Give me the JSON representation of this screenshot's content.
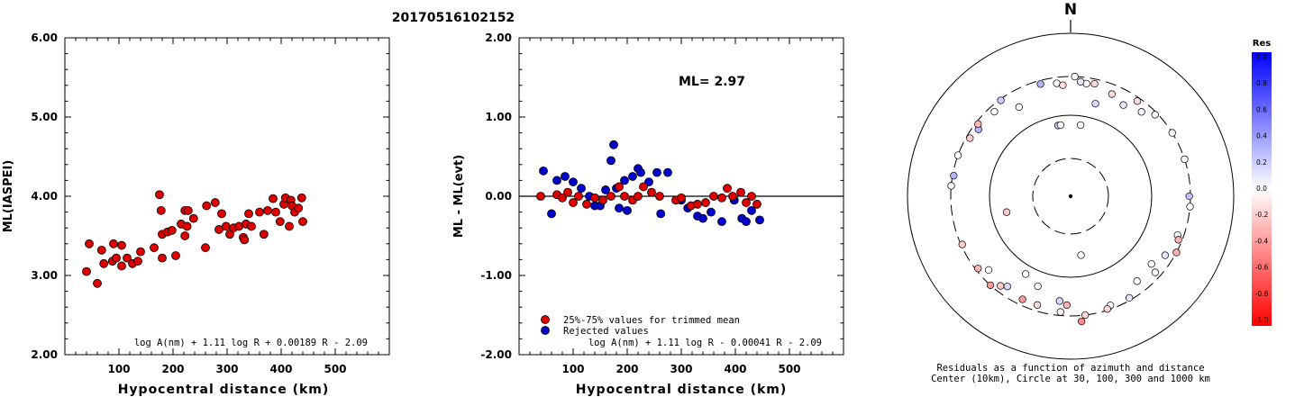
{
  "title": "20170516102152",
  "chart_data": [
    {
      "type": "scatter",
      "ylabel": "ML(IASPEI)",
      "xlabel": "Hypocentral distance (km)",
      "xlim": [
        0,
        600
      ],
      "ylim": [
        2.0,
        6.0
      ],
      "xticks": [
        "100",
        "200",
        "300",
        "400",
        "500"
      ],
      "yticks": [
        "2.00",
        "3.00",
        "4.00",
        "5.00",
        "6.00"
      ],
      "formula": "log A(nm) + 1.11 log R + 0.00189 R - 2.09",
      "points_color": "#dd0000",
      "points": [
        [
          40,
          3.05
        ],
        [
          45,
          3.4
        ],
        [
          60,
          2.9
        ],
        [
          68,
          3.32
        ],
        [
          72,
          3.15
        ],
        [
          88,
          3.18
        ],
        [
          90,
          3.4
        ],
        [
          95,
          3.22
        ],
        [
          105,
          3.12
        ],
        [
          105,
          3.38
        ],
        [
          115,
          3.22
        ],
        [
          125,
          3.15
        ],
        [
          135,
          3.18
        ],
        [
          140,
          3.3
        ],
        [
          165,
          3.35
        ],
        [
          175,
          4.02
        ],
        [
          178,
          3.82
        ],
        [
          180,
          3.52
        ],
        [
          180,
          3.22
        ],
        [
          190,
          3.55
        ],
        [
          198,
          3.57
        ],
        [
          205,
          3.25
        ],
        [
          215,
          3.65
        ],
        [
          222,
          3.82
        ],
        [
          222,
          3.5
        ],
        [
          226,
          3.62
        ],
        [
          228,
          3.82
        ],
        [
          238,
          3.72
        ],
        [
          260,
          3.35
        ],
        [
          262,
          3.88
        ],
        [
          278,
          3.92
        ],
        [
          285,
          3.58
        ],
        [
          290,
          3.78
        ],
        [
          298,
          3.62
        ],
        [
          305,
          3.52
        ],
        [
          312,
          3.6
        ],
        [
          322,
          3.62
        ],
        [
          330,
          3.48
        ],
        [
          332,
          3.45
        ],
        [
          335,
          3.65
        ],
        [
          340,
          3.78
        ],
        [
          345,
          3.62
        ],
        [
          360,
          3.8
        ],
        [
          368,
          3.52
        ],
        [
          375,
          3.82
        ],
        [
          385,
          3.97
        ],
        [
          390,
          3.8
        ],
        [
          398,
          3.68
        ],
        [
          405,
          3.9
        ],
        [
          408,
          3.98
        ],
        [
          415,
          3.62
        ],
        [
          418,
          3.95
        ],
        [
          420,
          3.88
        ],
        [
          425,
          3.8
        ],
        [
          432,
          3.85
        ],
        [
          438,
          3.98
        ],
        [
          440,
          3.68
        ]
      ]
    },
    {
      "type": "scatter",
      "ylabel": "ML - ML(evt)",
      "xlabel": "Hypocentral distance (km)",
      "xlim": [
        0,
        600
      ],
      "ylim": [
        -2.0,
        2.0
      ],
      "xticks": [
        "100",
        "200",
        "300",
        "400",
        "500"
      ],
      "yticks": [
        "-2.00",
        "-1.00",
        "0.00",
        "1.00",
        "2.00"
      ],
      "annotation": "ML= 2.97",
      "formula": "log A(nm) + 1.11 log R - 0.00041 R - 2.09",
      "legend": [
        "25%-75% values for trimmed mean",
        "Rejected values"
      ],
      "trimmed_color": "#dd0000",
      "rejected_color": "#0000cc",
      "trimmed": [
        [
          40,
          0.0
        ],
        [
          70,
          0.02
        ],
        [
          80,
          -0.02
        ],
        [
          90,
          0.05
        ],
        [
          100,
          -0.08
        ],
        [
          110,
          0.0
        ],
        [
          125,
          -0.1
        ],
        [
          140,
          -0.02
        ],
        [
          155,
          -0.05
        ],
        [
          170,
          0.0
        ],
        [
          185,
          0.12
        ],
        [
          195,
          0.0
        ],
        [
          210,
          -0.05
        ],
        [
          220,
          0.0
        ],
        [
          230,
          0.12
        ],
        [
          245,
          0.05
        ],
        [
          260,
          0.0
        ],
        [
          290,
          -0.05
        ],
        [
          300,
          -0.02
        ],
        [
          318,
          -0.12
        ],
        [
          330,
          -0.1
        ],
        [
          345,
          -0.08
        ],
        [
          360,
          0.0
        ],
        [
          375,
          -0.02
        ],
        [
          385,
          0.1
        ],
        [
          395,
          0.0
        ],
        [
          410,
          0.05
        ],
        [
          420,
          -0.08
        ],
        [
          430,
          0.0
        ],
        [
          440,
          -0.1
        ]
      ],
      "rejected": [
        [
          45,
          0.32
        ],
        [
          60,
          -0.22
        ],
        [
          70,
          0.2
        ],
        [
          85,
          0.25
        ],
        [
          100,
          0.18
        ],
        [
          115,
          0.1
        ],
        [
          130,
          0.0
        ],
        [
          140,
          -0.12
        ],
        [
          150,
          -0.12
        ],
        [
          160,
          0.08
        ],
        [
          170,
          0.45
        ],
        [
          175,
          0.65
        ],
        [
          180,
          0.1
        ],
        [
          185,
          -0.15
        ],
        [
          195,
          0.2
        ],
        [
          200,
          -0.18
        ],
        [
          210,
          0.25
        ],
        [
          220,
          0.35
        ],
        [
          225,
          0.3
        ],
        [
          240,
          0.18
        ],
        [
          255,
          0.3
        ],
        [
          262,
          -0.22
        ],
        [
          275,
          0.3
        ],
        [
          300,
          -0.05
        ],
        [
          312,
          -0.15
        ],
        [
          330,
          -0.25
        ],
        [
          340,
          -0.28
        ],
        [
          355,
          -0.2
        ],
        [
          375,
          -0.32
        ],
        [
          398,
          -0.05
        ],
        [
          412,
          -0.28
        ],
        [
          420,
          -0.32
        ],
        [
          430,
          -0.18
        ],
        [
          445,
          -0.3
        ]
      ]
    },
    {
      "type": "polar-scatter",
      "north_label": "N",
      "caption": [
        "Residuals as a function of azimuth and distance",
        "Center (10km), Circle at 30, 100, 300 and 1000 km"
      ],
      "colorbar_title": "Res",
      "colorbar_ticks": [
        "1.0",
        "0.8",
        "0.6",
        "0.4",
        "0.2",
        "0.0",
        "-0.2",
        "-0.4",
        "-0.6",
        "-0.8",
        "-1.0"
      ],
      "points": [
        [
          2,
          1.0,
          0.0
        ],
        [
          8,
          0.95,
          0.0
        ],
        [
          12,
          0.96,
          -0.15
        ],
        [
          22,
          0.92,
          -0.15
        ],
        [
          15,
          0.8,
          0.15
        ],
        [
          30,
          0.88,
          0.1
        ],
        [
          35,
          0.97,
          -0.15
        ],
        [
          40,
          0.92,
          0.05
        ],
        [
          46,
          0.98,
          0.0
        ],
        [
          58,
          1.0,
          0.0
        ],
        [
          72,
          1.0,
          0.0
        ],
        [
          90,
          0.99,
          0.25
        ],
        [
          95,
          1.0,
          0.0
        ],
        [
          110,
          0.95,
          0.0
        ],
        [
          112,
          0.97,
          -0.3
        ],
        [
          118,
          1.0,
          -0.3
        ],
        [
          122,
          0.93,
          0.1
        ],
        [
          130,
          0.88,
          0.0
        ],
        [
          132,
          0.95,
          0.0
        ],
        [
          142,
          0.9,
          0.0
        ],
        [
          150,
          0.98,
          0.1
        ],
        [
          160,
          0.97,
          0.0
        ],
        [
          162,
          0.99,
          -0.15
        ],
        [
          170,
          0.5,
          0.0
        ],
        [
          173,
          1.0,
          -0.15
        ],
        [
          175,
          1.05,
          -0.45
        ],
        [
          182,
          0.91,
          -0.3
        ],
        [
          185,
          0.97,
          -0.05
        ],
        [
          186,
          0.88,
          0.15
        ],
        [
          197,
          0.95,
          -0.15
        ],
        [
          200,
          0.8,
          0.0
        ],
        [
          205,
          0.95,
          -0.4
        ],
        [
          210,
          0.75,
          0.0
        ],
        [
          215,
          0.92,
          0.15
        ],
        [
          218,
          0.95,
          -0.2
        ],
        [
          222,
          1.0,
          -0.4
        ],
        [
          228,
          0.92,
          0.0
        ],
        [
          232,
          0.98,
          -0.3
        ],
        [
          246,
          0.99,
          -0.2
        ],
        [
          256,
          0.55,
          -0.2
        ],
        [
          275,
          1.0,
          0.0
        ],
        [
          280,
          0.99,
          0.3
        ],
        [
          290,
          1.0,
          0.0
        ],
        [
          300,
          0.97,
          -0.2
        ],
        [
          306,
          0.95,
          0.3
        ],
        [
          308,
          0.98,
          -0.3
        ],
        [
          318,
          0.95,
          0.0
        ],
        [
          324,
          0.99,
          0.2
        ],
        [
          330,
          0.86,
          0.0
        ],
        [
          345,
          0.97,
          0.3
        ],
        [
          350,
          0.6,
          0.2
        ],
        [
          353,
          0.95,
          0.0
        ],
        [
          356,
          0.93,
          -0.15
        ],
        [
          5,
          0.96,
          0.1
        ],
        [
          8,
          0.6,
          0.0
        ],
        [
          352,
          0.6,
          0.0
        ]
      ]
    }
  ]
}
